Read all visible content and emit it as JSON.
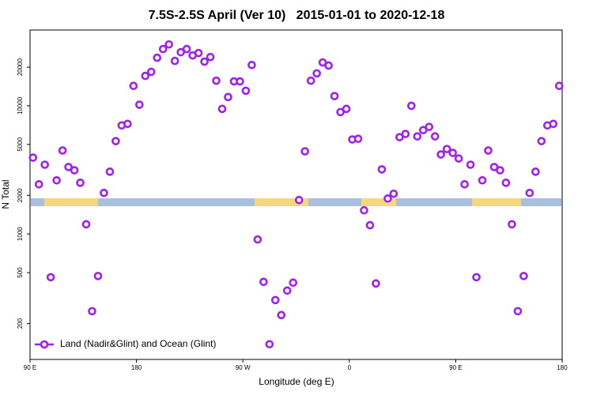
{
  "chart_data": {
    "type": "scatter",
    "title": "7.5S-2.5S April (Ver 10)   2015-01-01 to 2020-12-18",
    "x_label": "Longitude (deg E)",
    "y_label": "N Total",
    "log_y": true,
    "legend_position": "bottom-left",
    "xlim": [
      90,
      540
    ],
    "xticks": [
      {
        "value": 90,
        "label": "90 E"
      },
      180,
      {
        "value": 270,
        "label": "90 W"
      },
      {
        "value": 360,
        "label": "0"
      },
      {
        "value": 450,
        "label": "90 E"
      },
      {
        "value": 540,
        "label": "180"
      }
    ],
    "ylim": [
      105,
      39000
    ],
    "yticks": [
      200,
      500,
      1000,
      2000,
      5000,
      10000,
      20000
    ],
    "series": [
      {
        "name": "Land (Nadir&Glint) and Ocean (Glint)",
        "color": "#a020f0",
        "x": [
          92.5,
          97.5,
          102.5,
          107.5,
          112.5,
          117.5,
          122.5,
          127.5,
          132.5,
          137.5,
          142.5,
          147.5,
          152.5,
          157.5,
          162.5,
          167.5,
          172.5,
          177.5,
          182.5,
          187.5,
          192.5,
          197.5,
          202.5,
          207.5,
          212.5,
          217.5,
          222.5,
          227.5,
          232.5,
          237.5,
          242.5,
          247.5,
          252.5,
          257.5,
          262.5,
          267.5,
          272.5,
          277.5,
          282.5,
          287.5,
          292.5,
          297.5,
          302.5,
          307.5,
          312.5,
          317.5,
          322.5,
          327.5,
          332.5,
          337.5,
          342.5,
          347.5,
          352.5,
          357.5,
          362.5,
          367.5,
          372.5,
          377.5,
          382.5,
          387.5,
          392.5,
          397.5,
          402.5,
          407.5,
          412.5,
          417.5,
          422.5,
          427.5,
          432.5,
          437.5,
          442.5,
          447.5,
          452.5,
          457.5,
          462.5,
          467.5,
          472.5,
          477.5,
          482.5,
          487.5,
          492.5,
          497.5,
          502.5,
          507.5,
          512.5,
          517.5,
          522.5,
          527.5,
          532.5,
          537.5
        ],
        "values": [
          3940,
          2440,
          3470,
          460,
          2620,
          4480,
          3330,
          3140,
          2510,
          1190,
          250,
          470,
          2090,
          3060,
          5300,
          7030,
          7230,
          14300,
          10200,
          17100,
          18400,
          23700,
          27700,
          30100,
          22400,
          26200,
          27700,
          24700,
          25800,
          22100,
          24000,
          15700,
          9460,
          11700,
          15500,
          15500,
          13100,
          20800,
          906,
          423,
          138,
          305,
          233,
          362,
          417,
          1840,
          4410,
          15700,
          17900,
          21800,
          20600,
          11900,
          8930,
          9460,
          5460,
          5530,
          1530,
          1170,
          411,
          3190,
          1890,
          2060,
          5690,
          6030,
          10000,
          5770,
          6460,
          6840,
          5770,
          4170,
          4600,
          4290,
          3880,
          2440,
          3470,
          460,
          2620,
          4480,
          3330,
          3140,
          2510,
          1190,
          250,
          470,
          2090,
          3060,
          5300,
          7030,
          7230,
          14300
        ]
      }
    ]
  }
}
